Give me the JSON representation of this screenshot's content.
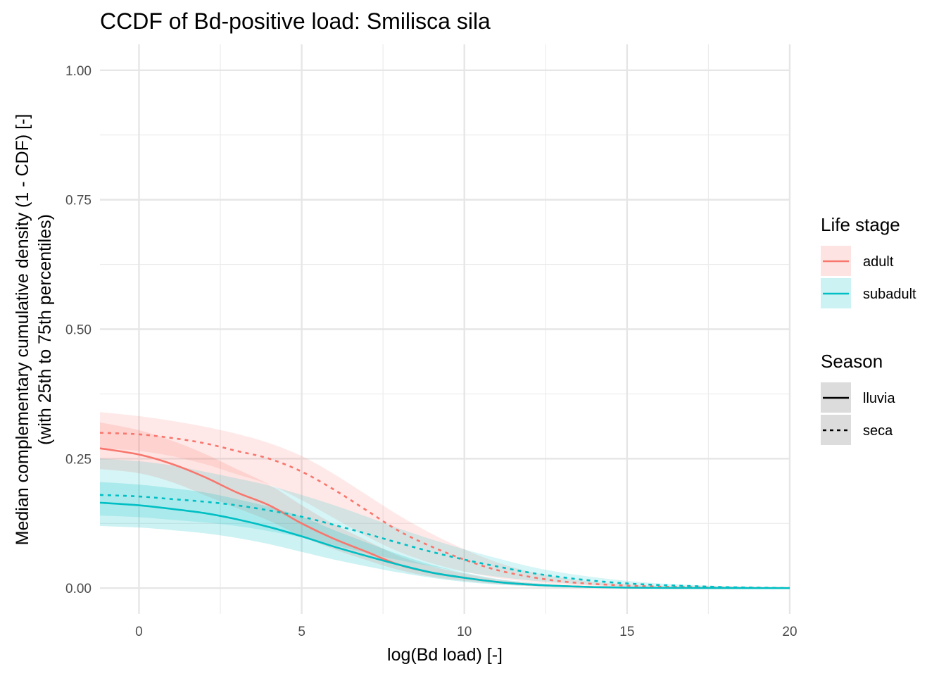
{
  "chart_data": {
    "type": "line",
    "title": "CCDF of Bd-positive load: Smilisca sila",
    "xlabel": "log(Bd load) [-]",
    "ylabel": [
      "Median complementary cumulative density (1 - CDF) [-]",
      "(with 25th to 75th percentiles)"
    ],
    "xlim": [
      -1.2,
      20
    ],
    "ylim": [
      -0.05,
      1.05
    ],
    "x_ticks": [
      0,
      5,
      10,
      15,
      20
    ],
    "x_tick_labels": [
      "0",
      "5",
      "10",
      "15",
      "20"
    ],
    "y_ticks": [
      0,
      0.25,
      0.5,
      0.75,
      1
    ],
    "y_tick_labels": [
      "0.00",
      "0.25",
      "0.50",
      "0.75",
      "1.00"
    ],
    "grid": true,
    "legend_placement": "right",
    "x": [
      -1.2,
      0,
      1,
      2,
      3,
      4,
      5,
      6,
      7,
      8,
      9,
      10,
      11,
      12,
      13,
      14,
      15,
      16,
      17,
      18,
      19,
      20
    ],
    "series": [
      {
        "life_stage": "adult",
        "season": "lluvia",
        "color": "#f8766d",
        "dash": "solid",
        "values": [
          0.27,
          0.258,
          0.24,
          0.215,
          0.185,
          0.16,
          0.125,
          0.095,
          0.07,
          0.045,
          0.03,
          0.02,
          0.012,
          0.007,
          0.004,
          0.002,
          0.001,
          0.0005,
          0.0003,
          0.0002,
          0.0001,
          0
        ],
        "lower": [
          0.23,
          0.222,
          0.205,
          0.18,
          0.155,
          0.13,
          0.1,
          0.075,
          0.054,
          0.035,
          0.022,
          0.014,
          0.008,
          0.004,
          0.002,
          0.001,
          0.0005,
          0.0002,
          0.0001,
          0,
          0,
          0
        ],
        "upper": [
          0.32,
          0.305,
          0.285,
          0.26,
          0.23,
          0.2,
          0.16,
          0.123,
          0.092,
          0.062,
          0.042,
          0.028,
          0.017,
          0.01,
          0.006,
          0.003,
          0.0015,
          0.0008,
          0.0004,
          0.0002,
          0.0001,
          0
        ]
      },
      {
        "life_stage": "adult",
        "season": "seca",
        "color": "#f8766d",
        "dash": "dotted",
        "values": [
          0.3,
          0.297,
          0.29,
          0.28,
          0.265,
          0.25,
          0.225,
          0.19,
          0.15,
          0.11,
          0.08,
          0.055,
          0.035,
          0.022,
          0.013,
          0.008,
          0.005,
          0.003,
          0.002,
          0.001,
          0.0005,
          0
        ],
        "lower": [
          0.27,
          0.265,
          0.255,
          0.24,
          0.22,
          0.2,
          0.17,
          0.135,
          0.1,
          0.07,
          0.048,
          0.032,
          0.02,
          0.012,
          0.007,
          0.004,
          0.002,
          0.001,
          0.0005,
          0.0002,
          0.0001,
          0
        ],
        "upper": [
          0.34,
          0.332,
          0.323,
          0.312,
          0.298,
          0.28,
          0.255,
          0.22,
          0.18,
          0.14,
          0.105,
          0.075,
          0.05,
          0.032,
          0.02,
          0.012,
          0.007,
          0.004,
          0.002,
          0.001,
          0.0005,
          0
        ]
      },
      {
        "life_stage": "subadult",
        "season": "lluvia",
        "color": "#00bfc4",
        "dash": "solid",
        "values": [
          0.165,
          0.16,
          0.153,
          0.145,
          0.133,
          0.118,
          0.1,
          0.08,
          0.062,
          0.045,
          0.03,
          0.02,
          0.012,
          0.007,
          0.004,
          0.002,
          0.001,
          0.0005,
          0.0003,
          0.0002,
          0.0001,
          0
        ],
        "lower": [
          0.12,
          0.117,
          0.112,
          0.106,
          0.097,
          0.085,
          0.07,
          0.055,
          0.042,
          0.03,
          0.02,
          0.012,
          0.007,
          0.004,
          0.002,
          0.001,
          0.0005,
          0.0002,
          0.0001,
          0,
          0,
          0
        ],
        "upper": [
          0.205,
          0.2,
          0.193,
          0.185,
          0.172,
          0.157,
          0.138,
          0.112,
          0.088,
          0.065,
          0.045,
          0.03,
          0.018,
          0.011,
          0.006,
          0.003,
          0.0018,
          0.001,
          0.0005,
          0.0002,
          0.0001,
          0
        ]
      },
      {
        "life_stage": "subadult",
        "season": "seca",
        "color": "#00bfc4",
        "dash": "dotted",
        "values": [
          0.18,
          0.177,
          0.172,
          0.167,
          0.16,
          0.15,
          0.138,
          0.122,
          0.105,
          0.087,
          0.07,
          0.055,
          0.042,
          0.03,
          0.021,
          0.014,
          0.009,
          0.006,
          0.004,
          0.002,
          0.001,
          0
        ],
        "lower": [
          0.14,
          0.137,
          0.132,
          0.127,
          0.12,
          0.11,
          0.098,
          0.083,
          0.068,
          0.054,
          0.042,
          0.031,
          0.022,
          0.015,
          0.01,
          0.006,
          0.004,
          0.002,
          0.001,
          0.0005,
          0.0002,
          0
        ],
        "upper": [
          0.25,
          0.245,
          0.237,
          0.225,
          0.212,
          0.198,
          0.18,
          0.16,
          0.138,
          0.115,
          0.094,
          0.075,
          0.058,
          0.042,
          0.03,
          0.021,
          0.014,
          0.009,
          0.006,
          0.004,
          0.002,
          0
        ]
      }
    ],
    "legends": [
      {
        "title": "Life stage",
        "items": [
          {
            "label": "adult",
            "color": "#f8766d",
            "fill": "#fde3e1"
          },
          {
            "label": "subadult",
            "color": "#00bfc4",
            "fill": "#ccf2f3"
          }
        ]
      },
      {
        "title": "Season",
        "items": [
          {
            "label": "lluvia",
            "color": "#000000",
            "dash": "solid",
            "fill": "#dcdcdc"
          },
          {
            "label": "seca",
            "color": "#000000",
            "dash": "dotted",
            "fill": "#dcdcdc"
          }
        ]
      }
    ]
  }
}
